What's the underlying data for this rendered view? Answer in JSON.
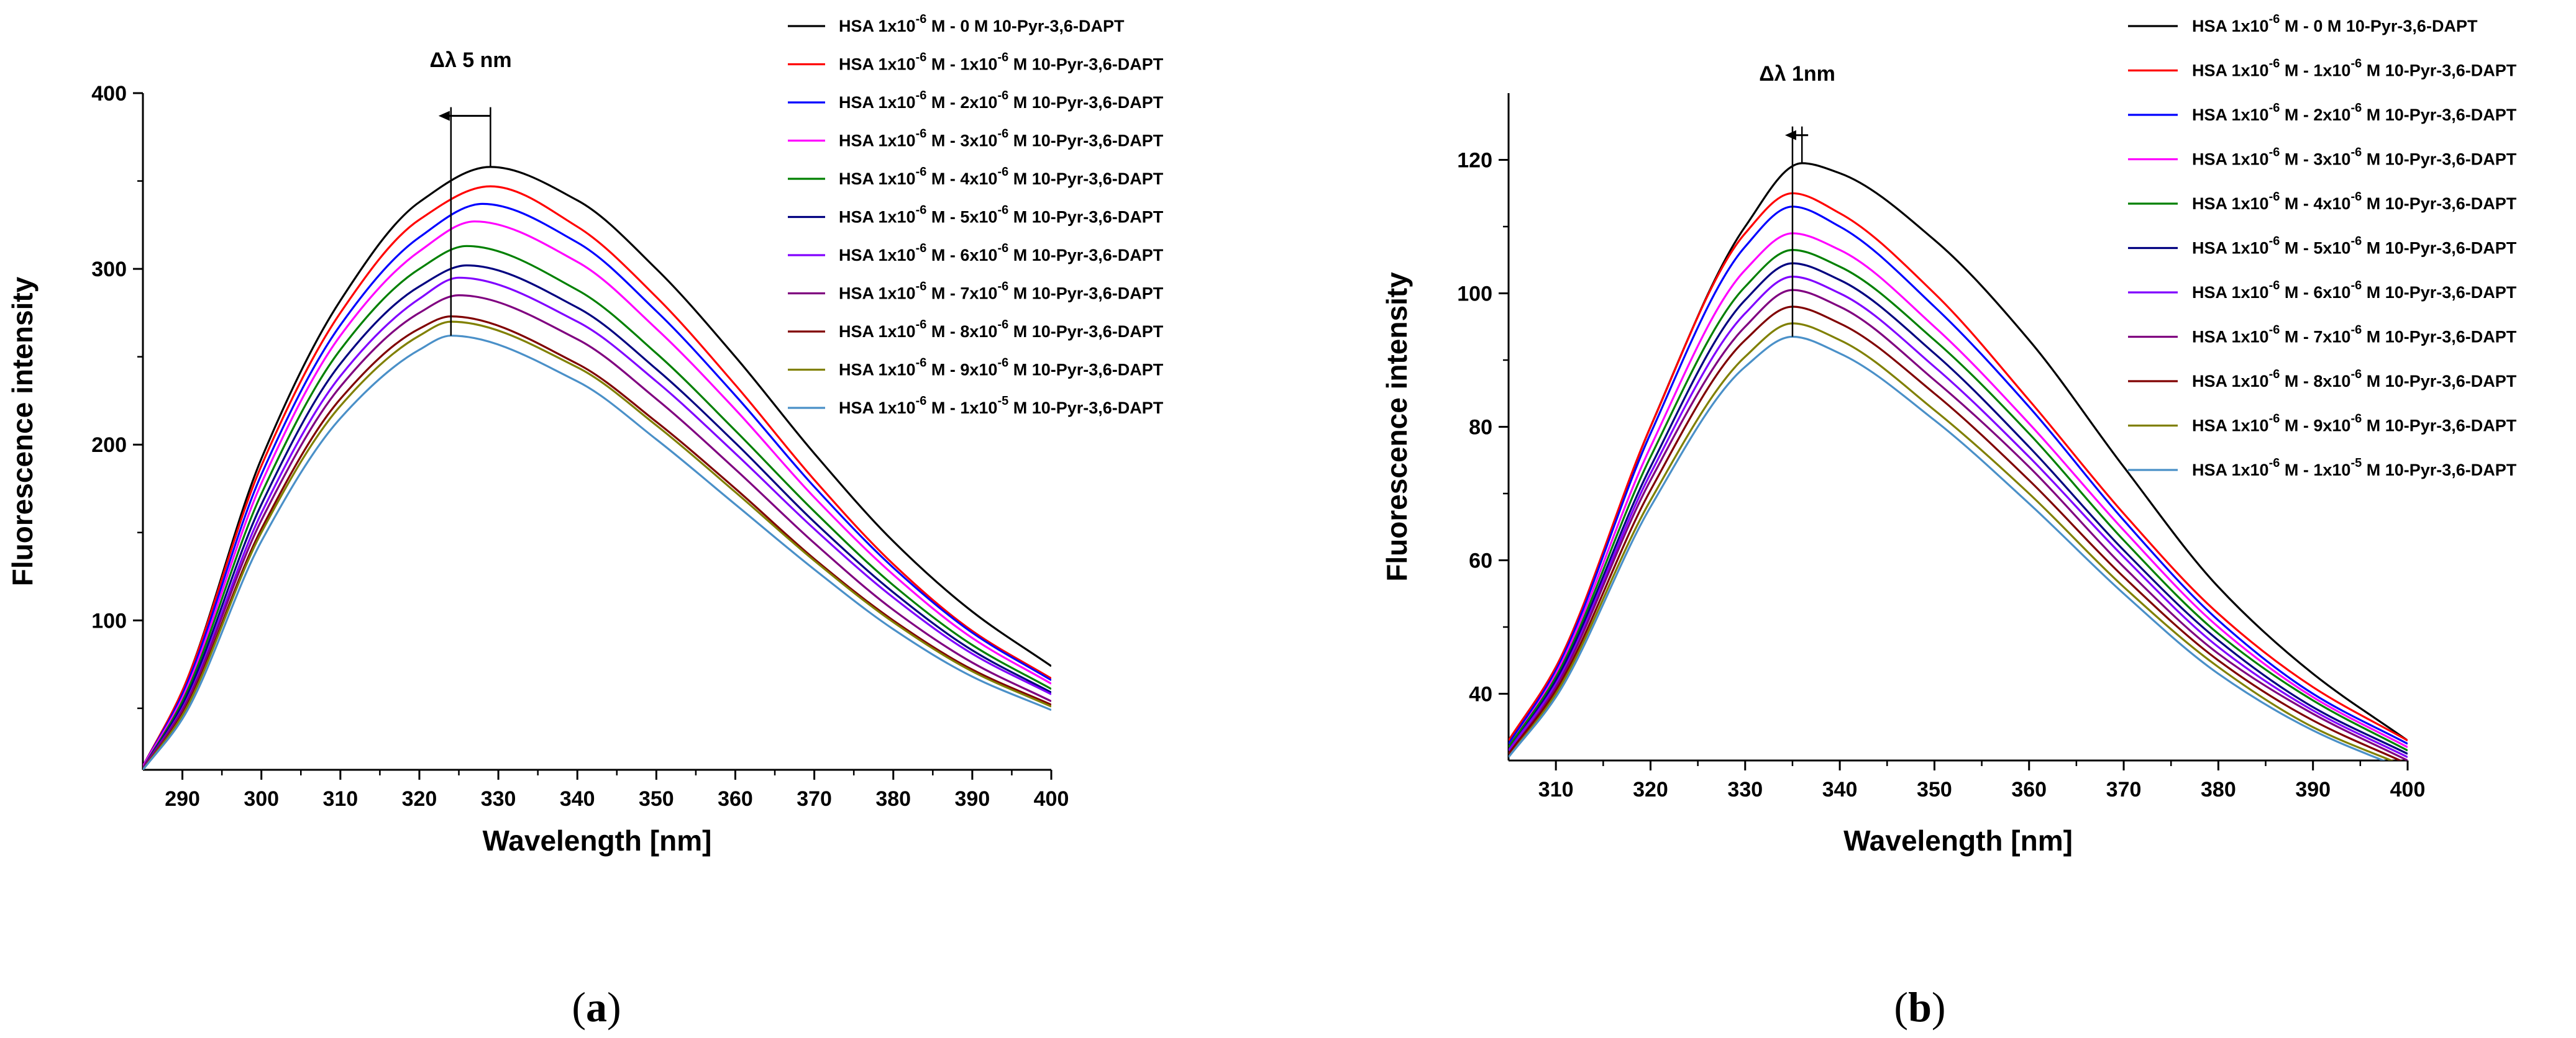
{
  "chart_data": [
    {
      "panel": "a",
      "panel_label": "a",
      "type": "line",
      "xlabel": "Wavelength [nm]",
      "ylabel": "Fluorescence intensity",
      "xlim": [
        285,
        400
      ],
      "ylim": [
        15,
        400
      ],
      "xticks": [
        290,
        300,
        310,
        320,
        330,
        340,
        350,
        360,
        370,
        380,
        390,
        400
      ],
      "yticks": [
        100,
        200,
        300,
        400
      ],
      "annotation": {
        "text": "Δλ 5 nm",
        "from_x": 329,
        "to_x": 324,
        "arrow_direction": "left",
        "y_top": 392,
        "y_bottom": 262
      },
      "series": [
        {
          "name_prefix": "HSA 1x10",
          "name_exp1": "-6",
          "name_mid": " M - 0 M 10-Pyr-3,6-DAPT",
          "name_exp2": "",
          "name_suffix": "",
          "color": "#000000",
          "peak_x": 329,
          "x": [
            285,
            290,
            300,
            310,
            320,
            329,
            340,
            350,
            360,
            370,
            380,
            390,
            400
          ],
          "y": [
            17,
            60,
            192,
            282,
            338,
            358,
            339,
            300,
            250,
            195,
            145,
            105,
            74
          ]
        },
        {
          "name_prefix": "HSA 1x10",
          "name_exp1": "-6",
          "name_mid": " M - 1x10",
          "name_exp2": "-6",
          "name_suffix": " M 10-Pyr-3,6-DAPT",
          "color": "#ff0000",
          "peak_x": 329,
          "x": [
            285,
            290,
            300,
            310,
            320,
            329,
            340,
            350,
            360,
            370,
            380,
            390,
            400
          ],
          "y": [
            17,
            60,
            188,
            275,
            328,
            347,
            324,
            284,
            234,
            180,
            132,
            94,
            67
          ]
        },
        {
          "name_prefix": "HSA 1x10",
          "name_exp1": "-6",
          "name_mid": " M - 2x10",
          "name_exp2": "-6",
          "name_suffix": " M 10-Pyr-3,6-DAPT",
          "color": "#0000ff",
          "peak_x": 328,
          "x": [
            285,
            290,
            300,
            310,
            320,
            328,
            340,
            350,
            360,
            370,
            380,
            390,
            400
          ],
          "y": [
            17,
            58,
            183,
            268,
            318,
            337,
            315,
            276,
            228,
            176,
            130,
            93,
            66
          ]
        },
        {
          "name_prefix": "HSA 1x10",
          "name_exp1": "-6",
          "name_mid": " M - 3x10",
          "name_exp2": "-6",
          "name_suffix": " M 10-Pyr-3,6-DAPT",
          "color": "#ff00ff",
          "peak_x": 327,
          "x": [
            285,
            290,
            300,
            310,
            320,
            327,
            340,
            350,
            360,
            370,
            380,
            390,
            400
          ],
          "y": [
            17,
            56,
            178,
            262,
            310,
            327,
            304,
            266,
            220,
            170,
            126,
            90,
            64
          ]
        },
        {
          "name_prefix": "HSA 1x10",
          "name_exp1": "-6",
          "name_mid": " M - 4x10",
          "name_exp2": "-6",
          "name_suffix": " M 10-Pyr-3,6-DAPT",
          "color": "#008000",
          "peak_x": 326,
          "x": [
            285,
            290,
            300,
            310,
            320,
            326,
            340,
            350,
            360,
            370,
            380,
            390,
            400
          ],
          "y": [
            16,
            54,
            172,
            254,
            300,
            313,
            288,
            252,
            208,
            162,
            120,
            86,
            61
          ]
        },
        {
          "name_prefix": "HSA 1x10",
          "name_exp1": "-6",
          "name_mid": " M - 5x10",
          "name_exp2": "-6",
          "name_suffix": " M 10-Pyr-3,6-DAPT",
          "color": "#000080",
          "peak_x": 326,
          "x": [
            285,
            290,
            300,
            310,
            320,
            326,
            340,
            350,
            360,
            370,
            380,
            390,
            400
          ],
          "y": [
            16,
            52,
            166,
            246,
            290,
            302,
            278,
            243,
            201,
            156,
            116,
            83,
            59
          ]
        },
        {
          "name_prefix": "HSA 1x10",
          "name_exp1": "-6",
          "name_mid": " M - 6x10",
          "name_exp2": "-6",
          "name_suffix": " M 10-Pyr-3,6-DAPT",
          "color": "#8000ff",
          "peak_x": 325,
          "x": [
            285,
            290,
            300,
            310,
            320,
            325,
            340,
            350,
            360,
            370,
            380,
            390,
            400
          ],
          "y": [
            16,
            50,
            161,
            239,
            283,
            295,
            270,
            236,
            195,
            152,
            113,
            81,
            58
          ]
        },
        {
          "name_prefix": "HSA 1x10",
          "name_exp1": "-6",
          "name_mid": " M - 7x10",
          "name_exp2": "-6",
          "name_suffix": " M 10-Pyr-3,6-DAPT",
          "color": "#800080",
          "peak_x": 325,
          "x": [
            285,
            290,
            300,
            310,
            320,
            325,
            340,
            350,
            360,
            370,
            380,
            390,
            400
          ],
          "y": [
            16,
            49,
            157,
            233,
            275,
            285,
            260,
            226,
            186,
            144,
            106,
            76,
            54
          ]
        },
        {
          "name_prefix": "HSA 1x10",
          "name_exp1": "-6",
          "name_mid": " M - 8x10",
          "name_exp2": "-6",
          "name_suffix": " M 10-Pyr-3,6-DAPT",
          "color": "#800000",
          "peak_x": 324,
          "x": [
            285,
            290,
            300,
            310,
            320,
            324,
            340,
            350,
            360,
            370,
            380,
            390,
            400
          ],
          "y": [
            15,
            47,
            152,
            226,
            266,
            273,
            246,
            213,
            175,
            135,
            100,
            72,
            52
          ]
        },
        {
          "name_prefix": "HSA 1x10",
          "name_exp1": "-6",
          "name_mid": " M - 9x10",
          "name_exp2": "-6",
          "name_suffix": " M 10-Pyr-3,6-DAPT",
          "color": "#808000",
          "peak_x": 324,
          "x": [
            285,
            290,
            300,
            310,
            320,
            324,
            340,
            350,
            360,
            370,
            380,
            390,
            400
          ],
          "y": [
            15,
            46,
            150,
            222,
            262,
            270,
            244,
            211,
            173,
            134,
            99,
            71,
            51
          ]
        },
        {
          "name_prefix": "HSA 1x10",
          "name_exp1": "-6",
          "name_mid": " M - 1x10",
          "name_exp2": "-5",
          "name_suffix": " M 10-Pyr-3,6-DAPT",
          "color": "#4a90c8",
          "peak_x": 324,
          "x": [
            285,
            290,
            300,
            310,
            320,
            324,
            340,
            350,
            360,
            370,
            380,
            390,
            400
          ],
          "y": [
            15,
            44,
            145,
            215,
            254,
            262,
            236,
            203,
            166,
            129,
            95,
            68,
            49
          ]
        }
      ]
    },
    {
      "panel": "b",
      "panel_label": "b",
      "type": "line",
      "xlabel": "Wavelength [nm]",
      "ylabel": "Fluorescence intensity",
      "xlim": [
        305,
        400
      ],
      "ylim": [
        30,
        130
      ],
      "xticks": [
        310,
        320,
        330,
        340,
        350,
        360,
        370,
        380,
        390,
        400
      ],
      "yticks": [
        40,
        60,
        80,
        100,
        120
      ],
      "annotation": {
        "text": "Δλ 1nm",
        "from_x": 336,
        "to_x": 335,
        "arrow_direction": "left",
        "y_top": 125,
        "y_bottom": 93.5
      },
      "series": [
        {
          "name_prefix": "HSA 1x10",
          "name_exp1": "-6",
          "name_mid": " M - 0 M 10-Pyr-3,6-DAPT",
          "name_exp2": "",
          "name_suffix": "",
          "color": "#000000",
          "peak_x": 336,
          "x": [
            305,
            310,
            320,
            330,
            336,
            340,
            350,
            360,
            370,
            380,
            390,
            400
          ],
          "y": [
            33,
            44,
            80,
            110,
            119.5,
            118,
            108,
            93,
            74,
            56,
            43,
            33
          ]
        },
        {
          "name_prefix": "HSA 1x10",
          "name_exp1": "-6",
          "name_mid": " M - 1x10",
          "name_exp2": "-6",
          "name_suffix": " M 10-Pyr-3,6-DAPT",
          "color": "#ff0000",
          "peak_x": 335,
          "x": [
            305,
            310,
            320,
            330,
            335,
            340,
            350,
            360,
            370,
            380,
            390,
            400
          ],
          "y": [
            33,
            44,
            80,
            109,
            115,
            112,
            100,
            84,
            67,
            52,
            41,
            33
          ]
        },
        {
          "name_prefix": "HSA 1x10",
          "name_exp1": "-6",
          "name_mid": " M - 2x10",
          "name_exp2": "-6",
          "name_suffix": " M 10-Pyr-3,6-DAPT",
          "color": "#0000ff",
          "peak_x": 335,
          "x": [
            305,
            310,
            320,
            330,
            335,
            340,
            350,
            360,
            370,
            380,
            390,
            400
          ],
          "y": [
            32.5,
            43.5,
            79,
            107,
            113,
            110,
            98,
            83,
            66,
            51,
            40,
            32.5
          ]
        },
        {
          "name_prefix": "HSA 1x10",
          "name_exp1": "-6",
          "name_mid": " M - 3x10",
          "name_exp2": "-6",
          "name_suffix": " M 10-Pyr-3,6-DAPT",
          "color": "#ff00ff",
          "peak_x": 335,
          "x": [
            305,
            310,
            320,
            330,
            335,
            340,
            350,
            360,
            370,
            380,
            390,
            400
          ],
          "y": [
            32,
            43,
            77,
            103.5,
            109,
            106.5,
            95,
            80.5,
            64.5,
            50,
            39.5,
            32
          ]
        },
        {
          "name_prefix": "HSA 1x10",
          "name_exp1": "-6",
          "name_mid": " M - 4x10",
          "name_exp2": "-6",
          "name_suffix": " M 10-Pyr-3,6-DAPT",
          "color": "#008000",
          "peak_x": 335,
          "x": [
            305,
            310,
            320,
            330,
            335,
            340,
            350,
            360,
            370,
            380,
            390,
            400
          ],
          "y": [
            32,
            42.5,
            75.5,
            101,
            106.5,
            104,
            93,
            79,
            63,
            49,
            39,
            31.5
          ]
        },
        {
          "name_prefix": "HSA 1x10",
          "name_exp1": "-6",
          "name_mid": " M - 5x10",
          "name_exp2": "-6",
          "name_suffix": " M 10-Pyr-3,6-DAPT",
          "color": "#000080",
          "peak_x": 335,
          "x": [
            305,
            310,
            320,
            330,
            335,
            340,
            350,
            360,
            370,
            380,
            390,
            400
          ],
          "y": [
            31.5,
            42,
            74,
            99,
            104.5,
            102,
            91,
            77,
            61.5,
            48,
            38,
            31
          ]
        },
        {
          "name_prefix": "HSA 1x10",
          "name_exp1": "-6",
          "name_mid": " M - 6x10",
          "name_exp2": "-6",
          "name_suffix": " M 10-Pyr-3,6-DAPT",
          "color": "#8000ff",
          "peak_x": 335,
          "x": [
            305,
            310,
            320,
            330,
            335,
            340,
            350,
            360,
            370,
            380,
            390,
            400
          ],
          "y": [
            31.5,
            41.5,
            73,
            97,
            102.5,
            100,
            89,
            75.5,
            60.5,
            47,
            37.5,
            30.5
          ]
        },
        {
          "name_prefix": "HSA 1x10",
          "name_exp1": "-6",
          "name_mid": " M - 7x10",
          "name_exp2": "-6",
          "name_suffix": " M 10-Pyr-3,6-DAPT",
          "color": "#800080",
          "peak_x": 335,
          "x": [
            305,
            310,
            320,
            330,
            335,
            340,
            350,
            360,
            370,
            380,
            390,
            400
          ],
          "y": [
            31,
            41,
            72,
            95,
            100.5,
            98,
            87,
            74,
            59,
            46,
            37,
            30
          ]
        },
        {
          "name_prefix": "HSA 1x10",
          "name_exp1": "-6",
          "name_mid": " M - 8x10",
          "name_exp2": "-6",
          "name_suffix": " M 10-Pyr-3,6-DAPT",
          "color": "#800000",
          "peak_x": 335,
          "x": [
            305,
            310,
            320,
            330,
            335,
            340,
            350,
            360,
            370,
            380,
            390,
            400
          ],
          "y": [
            31,
            40.5,
            70.5,
            93,
            98,
            95.5,
            85,
            72,
            57.5,
            45,
            36,
            29.5
          ]
        },
        {
          "name_prefix": "HSA 1x10",
          "name_exp1": "-6",
          "name_mid": " M - 9x10",
          "name_exp2": "-6",
          "name_suffix": " M 10-Pyr-3,6-DAPT",
          "color": "#808000",
          "peak_x": 335,
          "x": [
            305,
            310,
            320,
            330,
            335,
            340,
            350,
            360,
            370,
            380,
            390,
            400
          ],
          "y": [
            30.5,
            40,
            69,
            90.5,
            95.5,
            93,
            82.5,
            70,
            56,
            44,
            35,
            29
          ]
        },
        {
          "name_prefix": "HSA 1x10",
          "name_exp1": "-6",
          "name_mid": " M - 1x10",
          "name_exp2": "-5",
          "name_suffix": " M 10-Pyr-3,6-DAPT",
          "color": "#4a90c8",
          "peak_x": 335,
          "x": [
            305,
            310,
            320,
            330,
            335,
            340,
            350,
            360,
            370,
            380,
            390,
            400
          ],
          "y": [
            30.5,
            39.5,
            68,
            89,
            93.5,
            91,
            81,
            68.5,
            55,
            43,
            34.5,
            28.5
          ]
        }
      ]
    }
  ]
}
